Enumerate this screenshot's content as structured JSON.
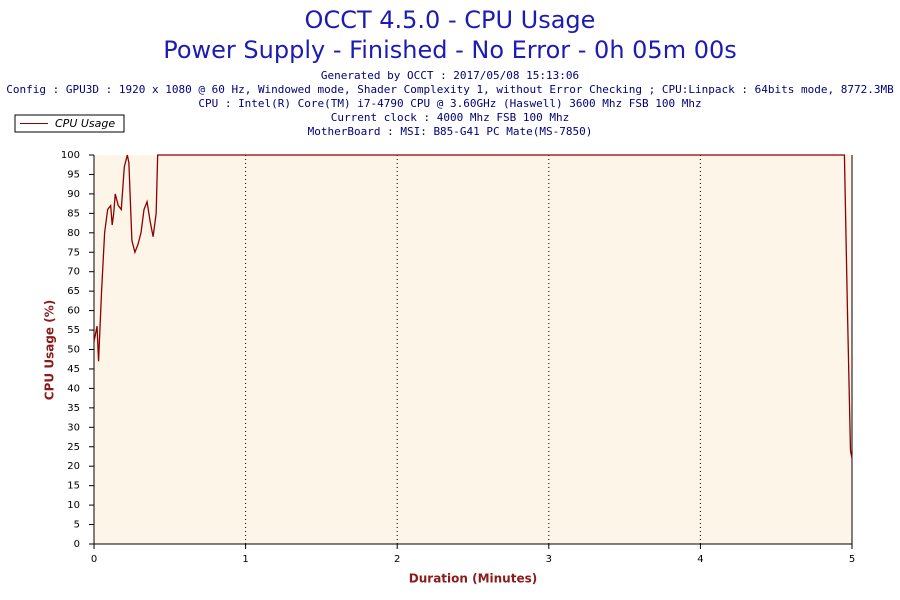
{
  "chart_data": {
    "type": "line",
    "title": "OCCT 4.5.0 - CPU Usage",
    "subtitle": "Power Supply - Finished - No Error - 0h 05m 00s",
    "info": [
      "Generated by OCCT : 2017/05/08 15:13:06",
      "Config : GPU3D : 1920 x 1080 @ 60 Hz, Windowed mode, Shader Complexity 1, without Error Checking ; CPU:Linpack : 64bits mode, 8772.3MB",
      "CPU : Intel(R) Core(TM) i7-4790 CPU @ 3.60GHz (Haswell) 3600 Mhz FSB 100 Mhz",
      "Current clock : 4000 Mhz FSB 100 Mhz",
      "MotherBoard : MSI: B85-G41 PC Mate(MS-7850)"
    ],
    "x_label": "Duration (Minutes)",
    "y_label": "CPU Usage (%)",
    "xlim": [
      0,
      5
    ],
    "ylim": [
      0,
      100
    ],
    "xticks": [
      0,
      1,
      2,
      3,
      4,
      5
    ],
    "yticks": [
      0,
      5,
      10,
      15,
      20,
      25,
      30,
      35,
      40,
      45,
      50,
      55,
      60,
      65,
      70,
      75,
      80,
      85,
      90,
      95,
      100
    ],
    "grid": true,
    "background": "#fdf6e8",
    "x": [
      0,
      0.02,
      0.03,
      0.05,
      0.07,
      0.09,
      0.11,
      0.12,
      0.13,
      0.14,
      0.16,
      0.18,
      0.2,
      0.22,
      0.23,
      0.25,
      0.27,
      0.29,
      0.31,
      0.33,
      0.35,
      0.37,
      0.39,
      0.41,
      0.42,
      1,
      2,
      3,
      4,
      4.95,
      4.97,
      4.99,
      5
    ],
    "series": [
      {
        "name": "CPU Usage",
        "color": "#8b0000",
        "values": [
          52,
          56,
          47,
          65,
          80,
          86,
          87,
          82,
          85,
          90,
          87,
          86,
          97,
          100,
          98,
          78,
          75,
          77,
          80,
          86,
          88,
          83,
          79,
          85,
          100,
          100,
          100,
          100,
          100,
          100,
          60,
          24,
          22
        ]
      }
    ]
  }
}
